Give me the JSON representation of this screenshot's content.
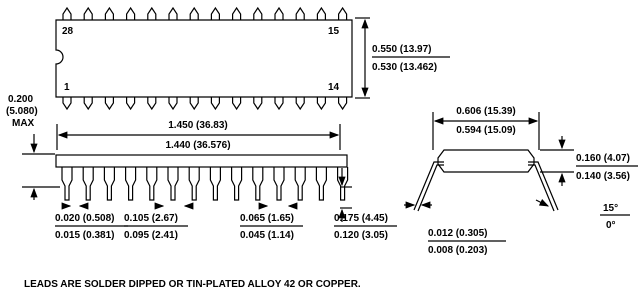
{
  "pins": {
    "top_left": "28",
    "top_right": "15",
    "bottom_left": "1",
    "bottom_right": "14"
  },
  "dimensions": {
    "body_width": {
      "max": "0.550 (13.97)",
      "min": "0.530 (13.462)"
    },
    "seated_height": {
      "lines": [
        "0.200",
        "(5.080)",
        "MAX"
      ]
    },
    "body_length": {
      "max": "1.450 (36.83)",
      "min": "1.440 (36.576)"
    },
    "row_spacing": {
      "max": "0.606 (15.39)",
      "min": "0.594 (15.09)"
    },
    "body_height": {
      "max": "0.160 (4.07)",
      "min": "0.140 (3.56)"
    },
    "lead_angle": {
      "max": "15°",
      "min": "0°"
    },
    "lead_thickness": {
      "max": "0.012 (0.305)",
      "min": "0.008 (0.203)"
    },
    "lead_width": {
      "max": "0.020 (0.508)",
      "min": "0.015 (0.381)"
    },
    "lead_pitch": {
      "max": "0.105 (2.67)",
      "min": "0.095 (2.41)"
    },
    "shoulder_width": {
      "max": "0.065 (1.65)",
      "min": "0.045 (1.14)"
    },
    "lead_length": {
      "max": "0.175 (4.45)",
      "min": "0.120 (3.05)"
    }
  },
  "note": "LEADS ARE SOLDER DIPPED OR TIN-PLATED ALLOY 42 OR COPPER."
}
